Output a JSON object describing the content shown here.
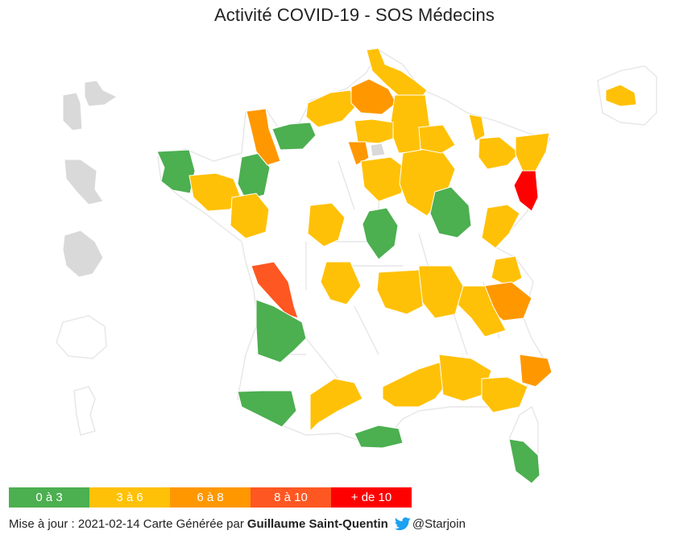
{
  "title": "Activité COVID-19 - SOS Médecins",
  "colors": {
    "green": "#4caf50",
    "yellow": "#ffc107",
    "orange": "#ff9800",
    "dark_orange": "#ff5722",
    "red": "#ff0000",
    "no_data": "#d9d9d9"
  },
  "legend": [
    {
      "label": "0 à 3",
      "color": "#4caf50"
    },
    {
      "label": "3 à 6",
      "color": "#ffc107"
    },
    {
      "label": "6 à 8",
      "color": "#ff9800"
    },
    {
      "label": "8 à 10",
      "color": "#ff5722"
    },
    {
      "label": "+ de 10",
      "color": "#ff0000"
    }
  ],
  "footer": {
    "update_text": "Mise à jour : 2021-02-14 Carte Générée par",
    "author": "Guillaume Saint-Quentin",
    "twitter_icon": "twitter-bird-icon",
    "handle": "@Starjoin"
  }
}
